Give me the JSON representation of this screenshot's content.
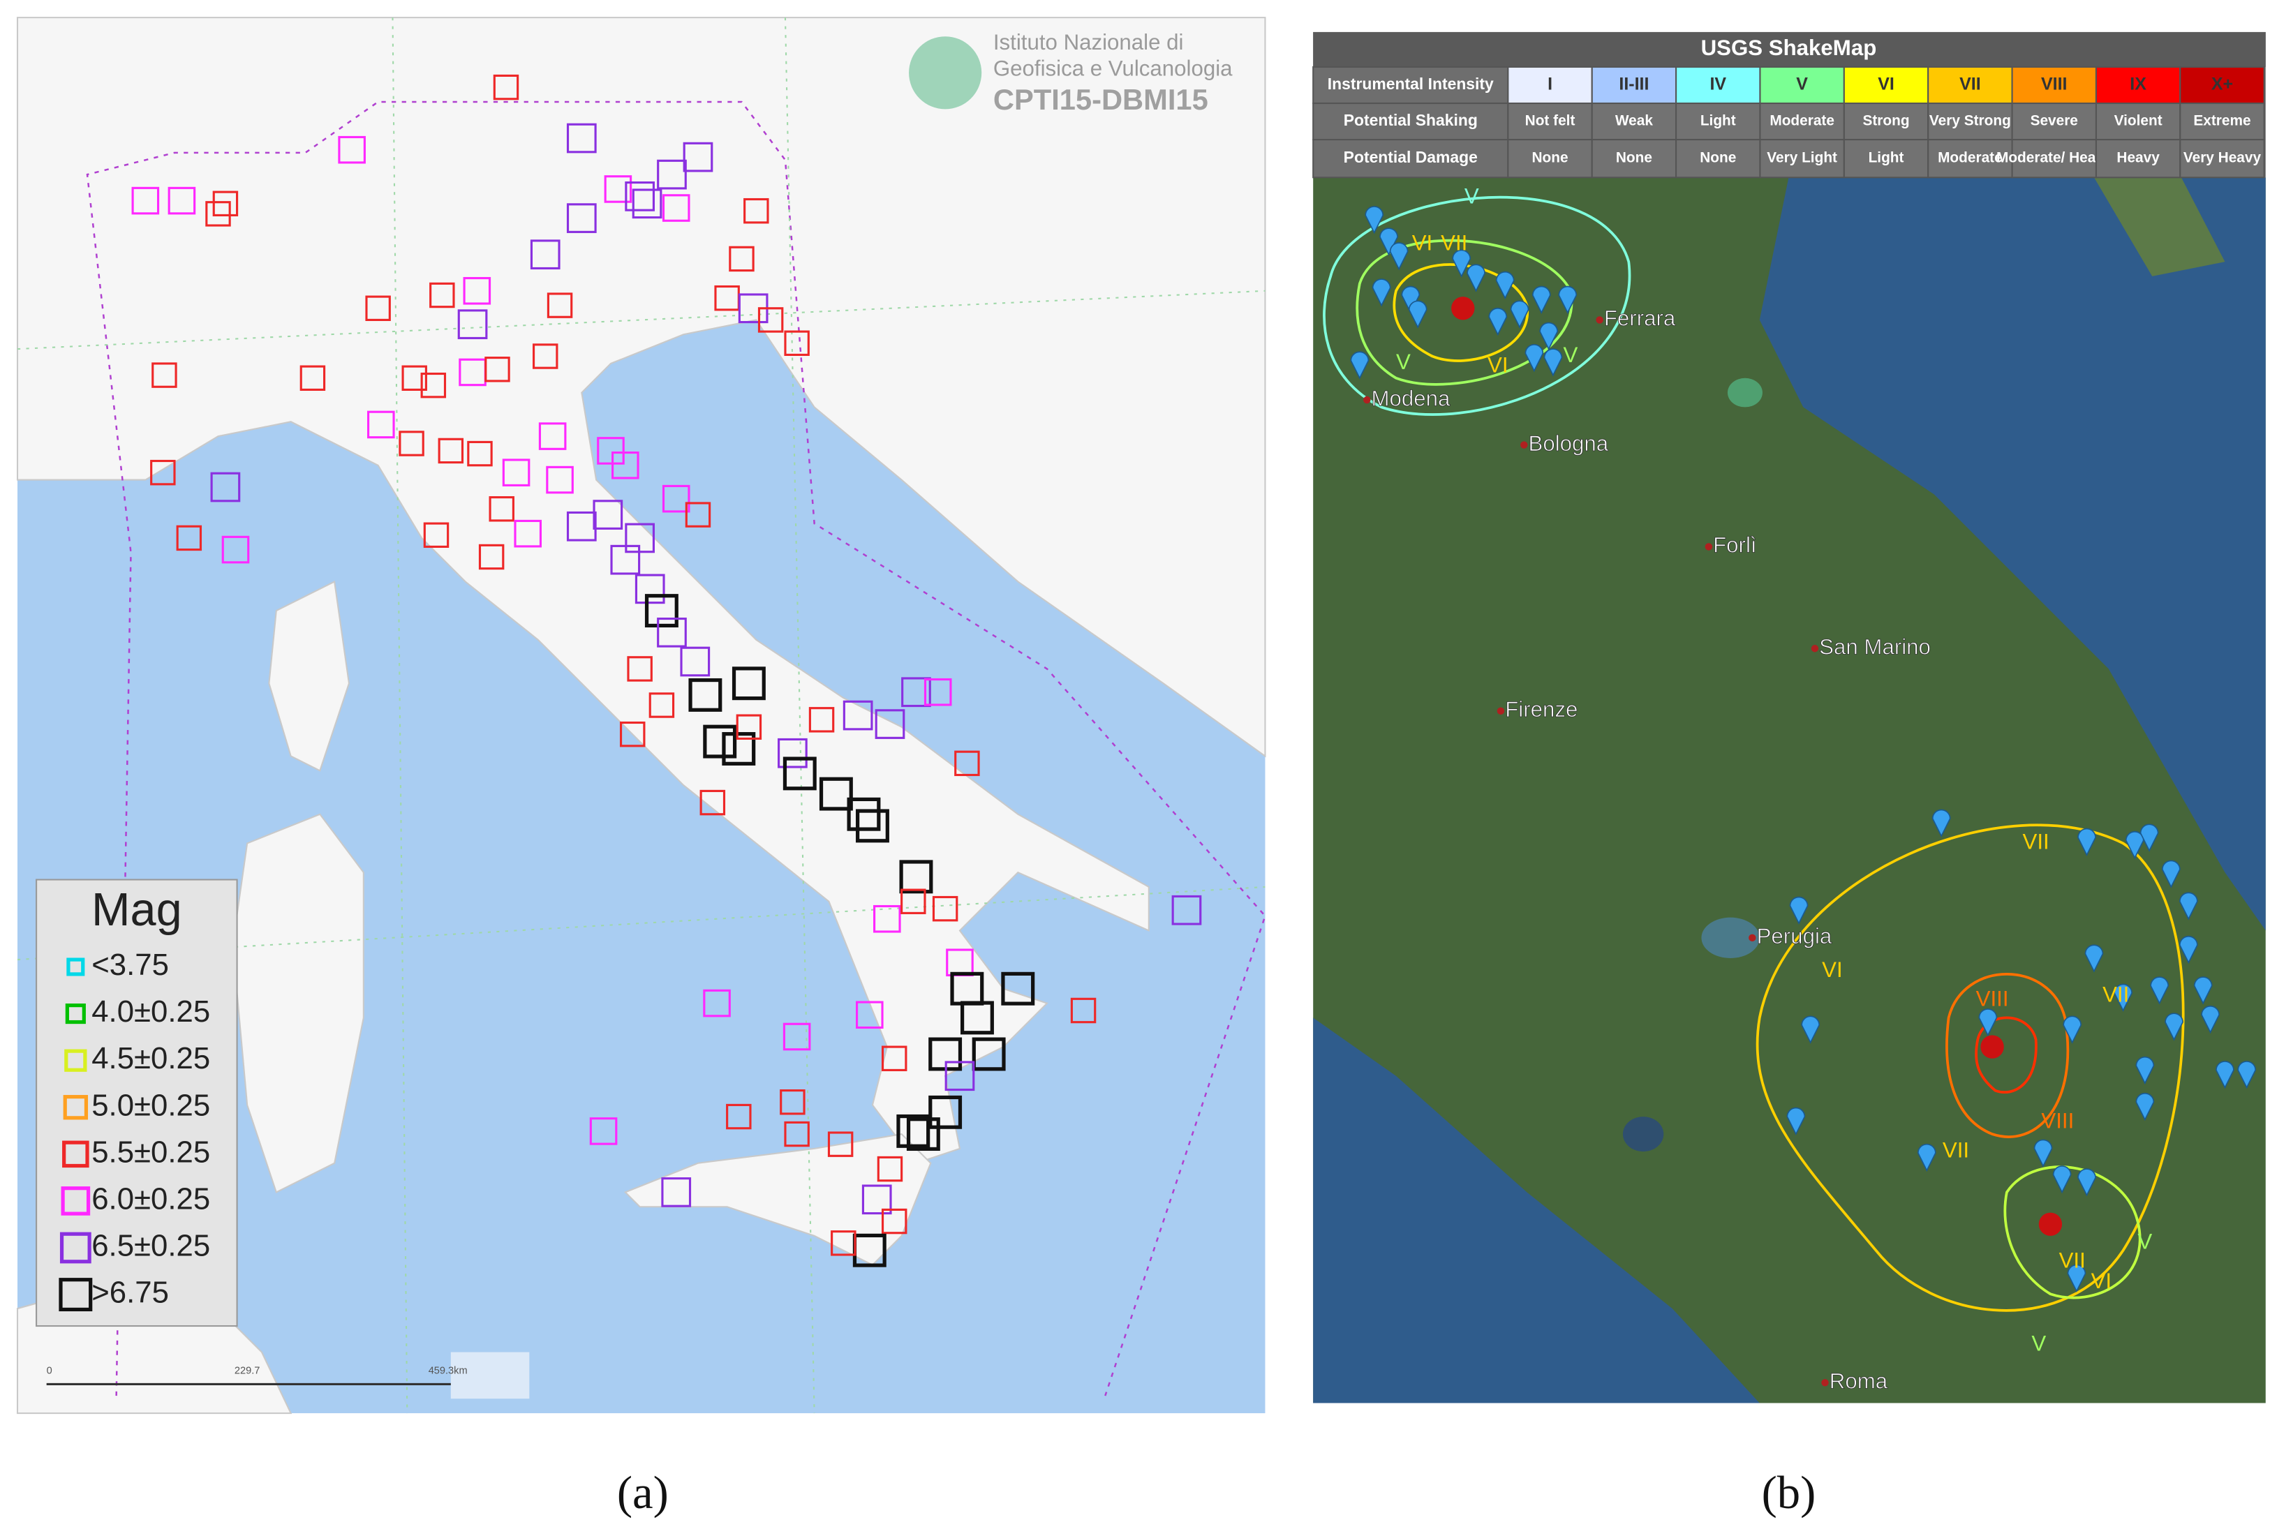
{
  "panel_a": {
    "caption": "(a)",
    "logo": [
      "Istituto Nazionale di",
      "Geofisica e Vulcanologia"
    ],
    "catalog": "CPTI15-DBMI15",
    "legend": {
      "title": "Mag",
      "items": [
        {
          "label": "<3.75",
          "color": "#00d8e8"
        },
        {
          "label": "4.0±0.25",
          "color": "#00c000"
        },
        {
          "label": "4.5±0.25",
          "color": "#d8f020"
        },
        {
          "label": "5.0±0.25",
          "color": "#ffa020"
        },
        {
          "label": "5.5±0.25",
          "color": "#ee2828"
        },
        {
          "label": "6.0±0.25",
          "color": "#ff28ff"
        },
        {
          "label": "6.5±0.25",
          "color": "#8a30e0"
        },
        {
          "label": ">6.75",
          "color": "#111111"
        }
      ]
    },
    "scale": [
      "0",
      "229.7",
      "459.3km"
    ]
  },
  "panel_b": {
    "caption": "(b)",
    "title": "USGS ShakeMap",
    "intensity_colors": [
      "#e8eeff",
      "#a6c8ff",
      "#80ffff",
      "#7aff93",
      "#ffff00",
      "#ffc800",
      "#ff9100",
      "#ff0000",
      "#c80000"
    ],
    "table": {
      "rows": [
        {
          "header": "Instrumental Intensity",
          "cells": [
            "I",
            "II-III",
            "IV",
            "V",
            "VI",
            "VII",
            "VIII",
            "IX",
            "X+"
          ]
        },
        {
          "header": "Potential Shaking",
          "cells": [
            "Not felt",
            "Weak",
            "Light",
            "Moderate",
            "Strong",
            "Very Strong",
            "Severe",
            "Violent",
            "Extreme"
          ]
        },
        {
          "header": "Potential Damage",
          "cells": [
            "None",
            "None",
            "None",
            "Very Light",
            "Light",
            "Moderate",
            "Moderate/ Heavy",
            "Heavy",
            "Very Heavy"
          ]
        }
      ]
    },
    "places": [
      "Ferrara",
      "Modena",
      "Bologna",
      "Forlì",
      "San Marino",
      "Firenze",
      "Perugia",
      "Roma"
    ],
    "contour_labels": [
      "V",
      "VI",
      "VII",
      "VI",
      "V",
      "V",
      "VII",
      "VI",
      "VII",
      "VIII",
      "VIII",
      "VII",
      "VII",
      "VI",
      "V",
      "V"
    ]
  }
}
